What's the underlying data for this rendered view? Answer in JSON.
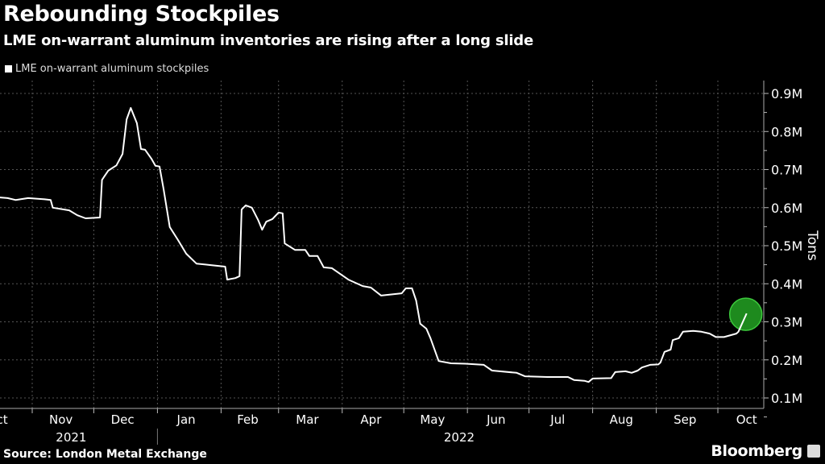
{
  "chart_data": {
    "type": "line",
    "title": "Rebounding Stockpiles",
    "subtitle": "LME on-warrant aluminum inventories are rising after a long slide",
    "legend": [
      "LME on-warrant aluminum stockpiles"
    ],
    "legend_placement": "top-left",
    "ylabel": "Tons",
    "xlabel": "",
    "ylim": [
      0.05,
      0.95
    ],
    "y_ticks": [
      {
        "value": 0.9,
        "label": "0.9M"
      },
      {
        "value": 0.8,
        "label": "0.8M"
      },
      {
        "value": 0.7,
        "label": "0.7M"
      },
      {
        "value": 0.6,
        "label": "0.6M"
      },
      {
        "value": 0.5,
        "label": "0.5M"
      },
      {
        "value": 0.4,
        "label": "0.4M"
      },
      {
        "value": 0.3,
        "label": "0.3M"
      },
      {
        "value": 0.2,
        "label": "0.2M"
      },
      {
        "value": 0.1,
        "label": "0.1M"
      }
    ],
    "x_ticks": [
      {
        "label": "Oct",
        "date": "2021-10-15"
      },
      {
        "label": "Nov",
        "date": "2021-11-15"
      },
      {
        "label": "Dec",
        "date": "2021-12-15"
      },
      {
        "label": "Jan",
        "date": "2022-01-15"
      },
      {
        "label": "Feb",
        "date": "2022-02-14"
      },
      {
        "label": "Mar",
        "date": "2022-03-15"
      },
      {
        "label": "Apr",
        "date": "2022-04-15"
      },
      {
        "label": "May",
        "date": "2022-05-15"
      },
      {
        "label": "Jun",
        "date": "2022-06-15"
      },
      {
        "label": "Jul",
        "date": "2022-07-15"
      },
      {
        "label": "Aug",
        "date": "2022-08-15"
      },
      {
        "label": "Sep",
        "date": "2022-09-15"
      },
      {
        "label": "Oct",
        "date": "2022-10-15"
      }
    ],
    "month_boundaries": [
      "2021-11-01",
      "2021-12-01",
      "2022-01-01",
      "2022-02-01",
      "2022-03-01",
      "2022-04-01",
      "2022-05-01",
      "2022-06-01",
      "2022-07-01",
      "2022-08-01",
      "2022-09-01",
      "2022-10-01"
    ],
    "years": [
      {
        "label": "2021",
        "date": "2021-11-20"
      },
      {
        "label": "2022",
        "date": "2022-05-28"
      }
    ],
    "grid": true,
    "unit": "million tons",
    "highlight": {
      "date": "2022-10-15",
      "value": 0.322,
      "color": "#1e8a1e"
    },
    "line_color": "#ffffff",
    "series": [
      {
        "name": "LME on-warrant aluminum stockpiles",
        "points": [
          [
            "2021-10-16",
            0.627
          ],
          [
            "2021-10-20",
            0.625
          ],
          [
            "2021-10-24",
            0.62
          ],
          [
            "2021-10-30",
            0.625
          ],
          [
            "2021-11-07",
            0.622
          ],
          [
            "2021-11-10",
            0.62
          ],
          [
            "2021-11-11",
            0.6
          ],
          [
            "2021-11-19",
            0.593
          ],
          [
            "2021-11-23",
            0.58
          ],
          [
            "2021-11-27",
            0.572
          ],
          [
            "2021-12-04",
            0.574
          ],
          [
            "2021-12-05",
            0.673
          ],
          [
            "2021-12-08",
            0.697
          ],
          [
            "2021-12-12",
            0.711
          ],
          [
            "2021-12-15",
            0.741
          ],
          [
            "2021-12-17",
            0.832
          ],
          [
            "2021-12-19",
            0.862
          ],
          [
            "2021-12-22",
            0.822
          ],
          [
            "2021-12-24",
            0.754
          ],
          [
            "2021-12-26",
            0.752
          ],
          [
            "2021-12-29",
            0.729
          ],
          [
            "2021-12-31",
            0.71
          ],
          [
            "2022-01-02",
            0.708
          ],
          [
            "2022-01-04",
            0.648
          ],
          [
            "2022-01-07",
            0.549
          ],
          [
            "2022-01-11",
            0.515
          ],
          [
            "2022-01-15",
            0.479
          ],
          [
            "2022-01-20",
            0.453
          ],
          [
            "2022-01-27",
            0.449
          ],
          [
            "2022-02-03",
            0.445
          ],
          [
            "2022-02-04",
            0.411
          ],
          [
            "2022-02-08",
            0.415
          ],
          [
            "2022-02-10",
            0.42
          ],
          [
            "2022-02-11",
            0.595
          ],
          [
            "2022-02-13",
            0.606
          ],
          [
            "2022-02-16",
            0.6
          ],
          [
            "2022-02-19",
            0.568
          ],
          [
            "2022-02-21",
            0.542
          ],
          [
            "2022-02-23",
            0.563
          ],
          [
            "2022-02-26",
            0.57
          ],
          [
            "2022-03-01",
            0.587
          ],
          [
            "2022-03-03",
            0.585
          ],
          [
            "2022-03-04",
            0.506
          ],
          [
            "2022-03-09",
            0.489
          ],
          [
            "2022-03-14",
            0.489
          ],
          [
            "2022-03-16",
            0.473
          ],
          [
            "2022-03-20",
            0.473
          ],
          [
            "2022-03-23",
            0.443
          ],
          [
            "2022-03-27",
            0.441
          ],
          [
            "2022-04-04",
            0.411
          ],
          [
            "2022-04-11",
            0.394
          ],
          [
            "2022-04-15",
            0.39
          ],
          [
            "2022-04-20",
            0.369
          ],
          [
            "2022-04-30",
            0.375
          ],
          [
            "2022-05-02",
            0.388
          ],
          [
            "2022-05-05",
            0.388
          ],
          [
            "2022-05-07",
            0.356
          ],
          [
            "2022-05-09",
            0.295
          ],
          [
            "2022-05-12",
            0.282
          ],
          [
            "2022-05-14",
            0.257
          ],
          [
            "2022-05-18",
            0.197
          ],
          [
            "2022-05-24",
            0.191
          ],
          [
            "2022-05-31",
            0.19
          ],
          [
            "2022-06-09",
            0.187
          ],
          [
            "2022-06-13",
            0.172
          ],
          [
            "2022-06-25",
            0.166
          ],
          [
            "2022-06-29",
            0.157
          ],
          [
            "2022-07-10",
            0.155
          ],
          [
            "2022-07-20",
            0.155
          ],
          [
            "2022-07-23",
            0.147
          ],
          [
            "2022-07-28",
            0.145
          ],
          [
            "2022-07-30",
            0.142
          ],
          [
            "2022-08-01",
            0.151
          ],
          [
            "2022-08-10",
            0.152
          ],
          [
            "2022-08-12",
            0.168
          ],
          [
            "2022-08-17",
            0.17
          ],
          [
            "2022-08-20",
            0.166
          ],
          [
            "2022-08-23",
            0.172
          ],
          [
            "2022-08-25",
            0.18
          ],
          [
            "2022-08-29",
            0.187
          ],
          [
            "2022-09-02",
            0.188
          ],
          [
            "2022-09-03",
            0.193
          ],
          [
            "2022-09-05",
            0.221
          ],
          [
            "2022-09-08",
            0.227
          ],
          [
            "2022-09-09",
            0.252
          ],
          [
            "2022-09-12",
            0.257
          ],
          [
            "2022-09-14",
            0.274
          ],
          [
            "2022-09-19",
            0.276
          ],
          [
            "2022-09-23",
            0.274
          ],
          [
            "2022-09-27",
            0.269
          ],
          [
            "2022-09-30",
            0.26
          ],
          [
            "2022-10-04",
            0.26
          ],
          [
            "2022-10-10",
            0.269
          ],
          [
            "2022-10-11",
            0.274
          ],
          [
            "2022-10-15",
            0.322
          ]
        ]
      }
    ]
  },
  "source": "Source: London Metal Exchange",
  "brand": "Bloomberg"
}
